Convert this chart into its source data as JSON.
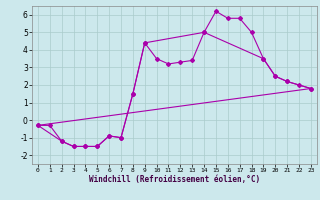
{
  "xlabel": "Windchill (Refroidissement éolien,°C)",
  "background_color": "#cce8ec",
  "grid_color": "#aacccc",
  "line_color": "#aa00aa",
  "xlim": [
    -0.5,
    23.5
  ],
  "ylim": [
    -2.5,
    6.5
  ],
  "xticks": [
    0,
    1,
    2,
    3,
    4,
    5,
    6,
    7,
    8,
    9,
    10,
    11,
    12,
    13,
    14,
    15,
    16,
    17,
    18,
    19,
    20,
    21,
    22,
    23
  ],
  "yticks": [
    -2,
    -1,
    0,
    1,
    2,
    3,
    4,
    5,
    6
  ],
  "series1_x": [
    0,
    1,
    2,
    3,
    4,
    5,
    6,
    7,
    8,
    9,
    10,
    11,
    12,
    13,
    14,
    15,
    16,
    17,
    18,
    19,
    20,
    21,
    22,
    23
  ],
  "series1_y": [
    -0.3,
    -0.3,
    -1.2,
    -1.5,
    -1.5,
    -1.5,
    -0.9,
    -1.0,
    1.5,
    4.4,
    3.5,
    3.2,
    3.3,
    3.4,
    5.0,
    6.2,
    5.8,
    5.8,
    5.0,
    3.5,
    2.5,
    2.2,
    2.0,
    1.8
  ],
  "series2_x": [
    0,
    2,
    3,
    4,
    5,
    6,
    7,
    8,
    9,
    14,
    19,
    20,
    21,
    23
  ],
  "series2_y": [
    -0.3,
    -1.2,
    -1.5,
    -1.5,
    -1.5,
    -0.9,
    -1.0,
    1.5,
    4.4,
    5.0,
    3.5,
    2.5,
    2.2,
    1.8
  ],
  "series3_x": [
    0,
    23
  ],
  "series3_y": [
    -0.3,
    1.8
  ],
  "marker": "D",
  "markersize": 2.0,
  "linewidth": 0.8
}
